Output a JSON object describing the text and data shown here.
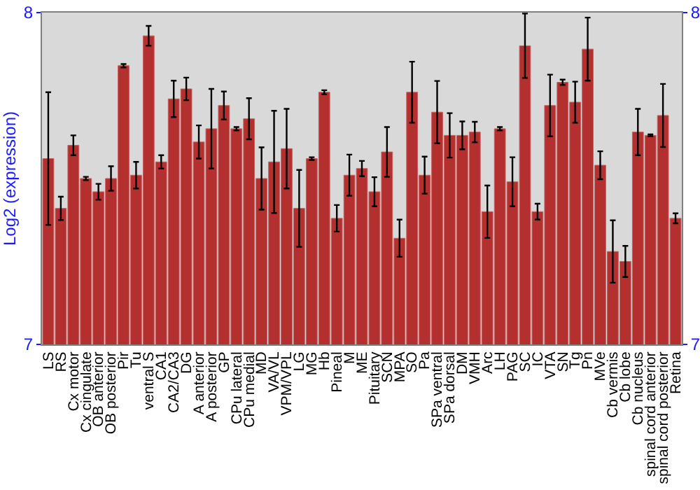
{
  "chart_data": {
    "type": "bar",
    "ylabel": "Log2 (expression)",
    "categories": [
      "LS",
      "RS",
      "Cx motor",
      "Cx cingulate",
      "OB anterior",
      "OB posterior",
      "Pir",
      "Tu",
      "ventral S",
      "CA1",
      "CA2/CA3",
      "DG",
      "A anterior",
      "A posterior",
      "GP",
      "CPu lateral",
      "CPu medial",
      "MD",
      "VA/VL",
      "VPM/VPL",
      "LG",
      "MG",
      "Hb",
      "Pineal",
      "M",
      "ME",
      "Pituitary",
      "SCN",
      "MPA",
      "SO",
      "Pa",
      "SPa ventral",
      "SPa dorsal",
      "DM",
      "VMH",
      "Arc",
      "LH",
      "PAG",
      "SC",
      "IC",
      "VTA",
      "SN",
      "Tg",
      "Pn",
      "MVe",
      "Cb vermis",
      "Cb lobe",
      "Cb nucleus",
      "spinal cord anterior",
      "spinal cord posterior",
      "Retina"
    ],
    "series": [
      {
        "color": "#b3302f",
        "values": [
          7.56,
          7.41,
          7.6,
          7.5,
          7.46,
          7.5,
          7.84,
          7.51,
          7.93,
          7.55,
          7.74,
          7.77,
          7.61,
          7.65,
          7.72,
          7.65,
          7.68,
          7.5,
          7.55,
          7.59,
          7.41,
          7.56,
          7.76,
          7.38,
          7.51,
          7.53,
          7.46,
          7.58,
          7.32,
          7.76,
          7.51,
          7.7,
          7.63,
          7.63,
          7.64,
          7.4,
          7.65,
          7.49,
          7.9,
          7.4,
          7.72,
          7.79,
          7.73,
          7.89,
          7.54,
          7.28,
          7.25,
          7.64,
          7.63,
          7.69,
          7.38
        ],
        "errors": [
          0.2,
          0.035,
          0.03,
          0.005,
          0.024,
          0.037,
          0.005,
          0.04,
          0.03,
          0.02,
          0.055,
          0.034,
          0.05,
          0.12,
          0.042,
          0.005,
          0.062,
          0.094,
          0.154,
          0.12,
          0.116,
          0.004,
          0.006,
          0.04,
          0.062,
          0.023,
          0.044,
          0.075,
          0.056,
          0.092,
          0.056,
          0.094,
          0.067,
          0.042,
          0.031,
          0.079,
          0.005,
          0.074,
          0.097,
          0.024,
          0.093,
          0.008,
          0.062,
          0.095,
          0.042,
          0.094,
          0.047,
          0.07,
          0.003,
          0.095,
          0.015
        ]
      }
    ],
    "ylim": [
      7,
      8
    ],
    "yticks": [
      7,
      8
    ],
    "y2lim": [
      7,
      8
    ],
    "y2ticks": [
      7,
      8
    ],
    "grid": false,
    "legend": false
  }
}
